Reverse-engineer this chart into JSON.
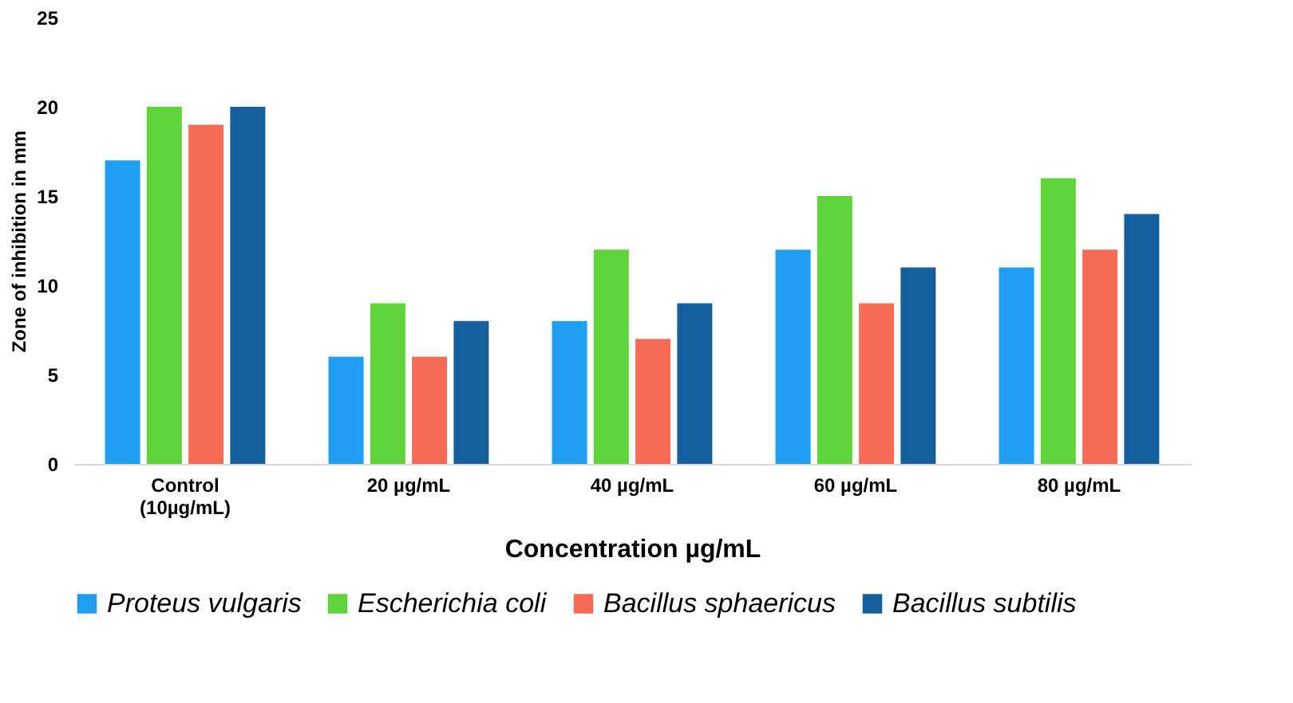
{
  "chart_data": {
    "type": "bar",
    "xlabel": "Concentration  µg/mL",
    "ylabel": "Zone of inhibition  in mm",
    "categories": [
      "Control\n(10µg/mL)",
      "20 µg/mL",
      "40 µg/mL",
      "60 µg/mL",
      "80 µg/mL"
    ],
    "series": [
      {
        "name": "Proteus vulgaris",
        "color": "#1e9ff2",
        "values": [
          17,
          6,
          8,
          12,
          11
        ]
      },
      {
        "name": "Escherichia coli",
        "color": "#5fd33a",
        "values": [
          20,
          9,
          12,
          15,
          16
        ]
      },
      {
        "name": "Bacillus sphaericus",
        "color": "#f76a55",
        "values": [
          19,
          6,
          7,
          9,
          12
        ]
      },
      {
        "name": "Bacillus subtilis",
        "color": "#14609e",
        "values": [
          20,
          8,
          9,
          11,
          14
        ]
      }
    ],
    "ylim": [
      0,
      25
    ],
    "yticks": [
      0,
      5,
      10,
      15,
      20,
      25
    ],
    "grid": false,
    "legend": "bottom"
  }
}
